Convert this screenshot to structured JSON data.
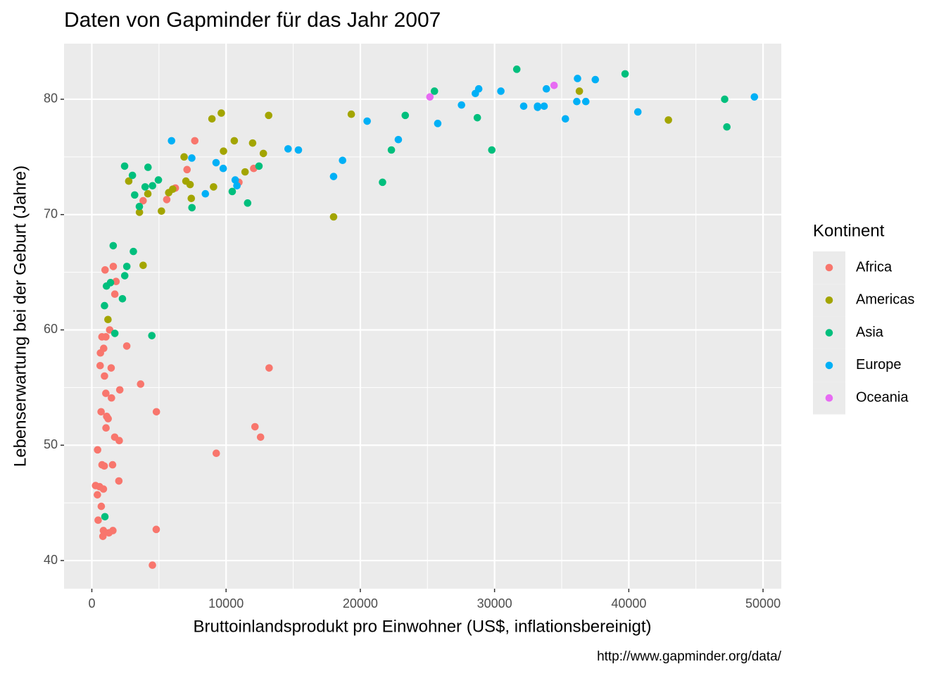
{
  "chart_data": {
    "type": "scatter",
    "title": "Daten von Gapminder für das Jahr 2007",
    "xlabel": "Bruttoinlandsprodukt pro Einwohner (US$, inflationsbereinigt)",
    "ylabel": "Lebenserwartung bei der Geburt (Jahre)",
    "caption": "http://www.gapminder.org/data/",
    "legend_title": "Kontinent",
    "legend": "right",
    "grid": true,
    "xlim": [
      -2070,
      51360
    ],
    "ylim": [
      37.56,
      84.82
    ],
    "xticks": [
      0,
      10000,
      20000,
      30000,
      40000,
      50000
    ],
    "yticks": [
      40,
      50,
      60,
      70,
      80
    ],
    "xminor": [
      5000,
      15000,
      25000,
      35000,
      45000
    ],
    "yminor": [
      45,
      55,
      65,
      75
    ],
    "series": [
      {
        "name": "Africa",
        "color": "#F8766D",
        "x": [
          6223,
          4797,
          1441,
          12570,
          1217,
          430,
          2042,
          706,
          1704,
          986,
          278,
          3633,
          1545,
          2083,
          5581,
          12154,
          641,
          691,
          13207,
          753,
          1328,
          943,
          579,
          1463,
          1569,
          415,
          12058,
          1045,
          759,
          1043,
          1803,
          10957,
          3820,
          824,
          4811,
          620,
          2014,
          7670,
          863,
          1598,
          1713,
          863,
          926,
          9270,
          2602,
          4514,
          1108,
          883,
          7093,
          1056,
          1271,
          470
        ],
        "values": [
          72.3,
          42.7,
          56.7,
          50.7,
          52.3,
          49.6,
          50.4,
          44.7,
          50.7,
          65.2,
          46.5,
          55.3,
          48.3,
          54.8,
          71.3,
          51.6,
          58.0,
          52.9,
          56.7,
          59.4,
          60.0,
          56.0,
          46.4,
          54.1,
          42.6,
          45.7,
          74.0,
          59.4,
          48.3,
          54.5,
          64.2,
          72.8,
          71.2,
          42.1,
          52.9,
          56.9,
          46.9,
          76.4,
          46.2,
          65.5,
          63.1,
          42.6,
          48.2,
          49.3,
          58.6,
          39.6,
          52.5,
          58.4,
          73.9,
          51.5,
          42.4,
          43.5
        ]
      },
      {
        "name": "Americas",
        "color": "#A3A500",
        "x": [
          12779,
          3822,
          9066,
          36319,
          13172,
          7007,
          9645,
          8948,
          6025,
          6873,
          5728,
          5186,
          1202,
          3548,
          7321,
          11978,
          2749,
          9809,
          4173,
          7409,
          19329,
          18009,
          42952,
          10612,
          11416
        ],
        "values": [
          75.3,
          65.6,
          72.4,
          80.7,
          78.6,
          72.9,
          78.8,
          78.3,
          72.2,
          75.0,
          71.9,
          70.3,
          60.9,
          70.2,
          72.6,
          76.2,
          72.9,
          75.5,
          71.8,
          71.4,
          78.7,
          69.8,
          78.2,
          76.4,
          73.7
        ]
      },
      {
        "name": "Asia",
        "color": "#00BF7D",
        "x": [
          975,
          29796,
          1391,
          1714,
          4959,
          39725,
          2452,
          3541,
          11606,
          4471,
          25523,
          31656,
          4520,
          1593,
          23348,
          47307,
          10461,
          12452,
          3096,
          944,
          1091,
          22316,
          2606,
          3191,
          21655,
          47143,
          3970,
          4185,
          28718,
          7458,
          2442,
          3025,
          2281
        ],
        "values": [
          43.8,
          75.6,
          64.1,
          59.7,
          73.0,
          82.2,
          64.7,
          70.7,
          71.0,
          59.5,
          80.7,
          82.6,
          72.5,
          67.3,
          78.6,
          77.6,
          72.0,
          74.2,
          66.8,
          62.1,
          63.8,
          75.6,
          65.5,
          71.7,
          72.8,
          80.0,
          72.4,
          74.1,
          78.4,
          70.6,
          74.2,
          73.4,
          62.7
        ]
      },
      {
        "name": "Europe",
        "color": "#00B0F6",
        "x": [
          5937,
          36126,
          33693,
          7446,
          10681,
          14619,
          22833,
          35278,
          33207,
          30470,
          32170,
          27538,
          18009,
          36181,
          40676,
          28570,
          9254,
          36798,
          49357,
          15390,
          20510,
          10809,
          9787,
          18678,
          25768,
          28821,
          33860,
          37506,
          8458,
          33203
        ],
        "values": [
          76.4,
          79.8,
          79.4,
          74.9,
          73.0,
          75.7,
          76.5,
          78.3,
          79.3,
          80.7,
          79.4,
          79.5,
          73.3,
          81.8,
          78.9,
          80.5,
          74.5,
          79.8,
          80.2,
          75.6,
          78.1,
          72.5,
          74.0,
          74.7,
          77.9,
          80.9,
          80.9,
          81.7,
          71.8,
          79.4
        ]
      },
      {
        "name": "Oceania",
        "color": "#E76BF3",
        "x": [
          34435,
          25185
        ],
        "values": [
          81.2,
          80.2
        ]
      }
    ]
  }
}
